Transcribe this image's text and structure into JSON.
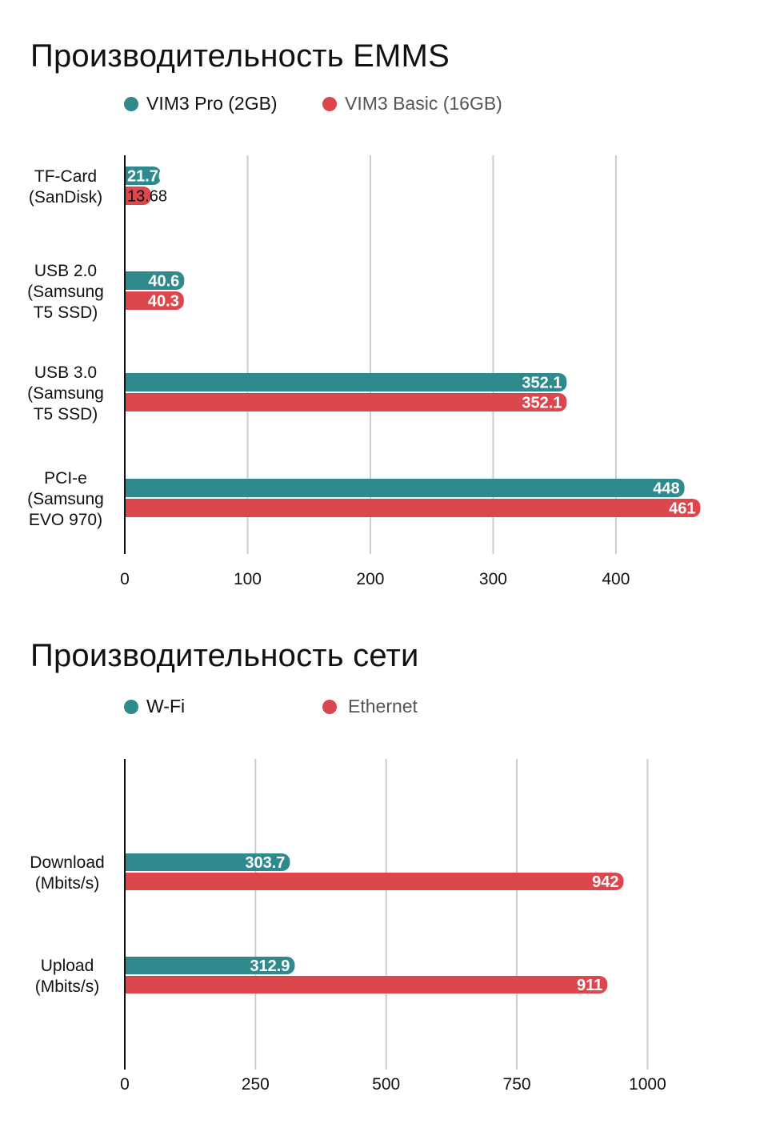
{
  "colors": {
    "series_a": "#2e8a8d",
    "series_b": "#dc474e",
    "grid": "#cccccc",
    "axis": "#111111",
    "legend_b_text": "#555555"
  },
  "chart_data": [
    {
      "type": "bar",
      "orientation": "horizontal",
      "title": "Производительность EMMS",
      "categories": [
        [
          "TF-Card",
          "(SanDisk)"
        ],
        [
          "USB 2.0",
          "(Samsung",
          "T5 SSD)"
        ],
        [
          "USB 3.0",
          "(Samsung",
          "T5 SSD)"
        ],
        [
          "PCI-e",
          "(Samsung",
          "EVO 970)"
        ]
      ],
      "series": [
        {
          "name": "VIM3 Pro (2GB)",
          "values": [
            21.76,
            40.6,
            352.1,
            448
          ],
          "labels": [
            "21.76",
            "40.6",
            "352.1",
            "448"
          ]
        },
        {
          "name": "VIM3 Basic (16GB)",
          "values": [
            13.68,
            40.3,
            352.1,
            461
          ],
          "labels": [
            "13.68",
            "40.3",
            "352.1",
            "461"
          ]
        }
      ],
      "x_ticks": [
        0,
        100,
        200,
        300,
        400
      ],
      "xlim": [
        0,
        460
      ],
      "grid": true,
      "legend_position": "top-left"
    },
    {
      "type": "bar",
      "orientation": "horizontal",
      "title": "Производительность сети",
      "categories": [
        [
          "Download",
          "(Mbits/s)"
        ],
        [
          "Upload",
          "(Mbits/s)"
        ]
      ],
      "series": [
        {
          "name": "W-Fi",
          "values": [
            303.7,
            312.9
          ],
          "labels": [
            "303.7",
            "312.9"
          ]
        },
        {
          "name": "Ethernet",
          "values": [
            942,
            911
          ],
          "labels": [
            "942",
            "911"
          ]
        }
      ],
      "x_ticks": [
        0,
        250,
        500,
        750,
        1000
      ],
      "xlim": [
        0,
        1030
      ],
      "grid": true,
      "legend_position": "top-left"
    }
  ]
}
